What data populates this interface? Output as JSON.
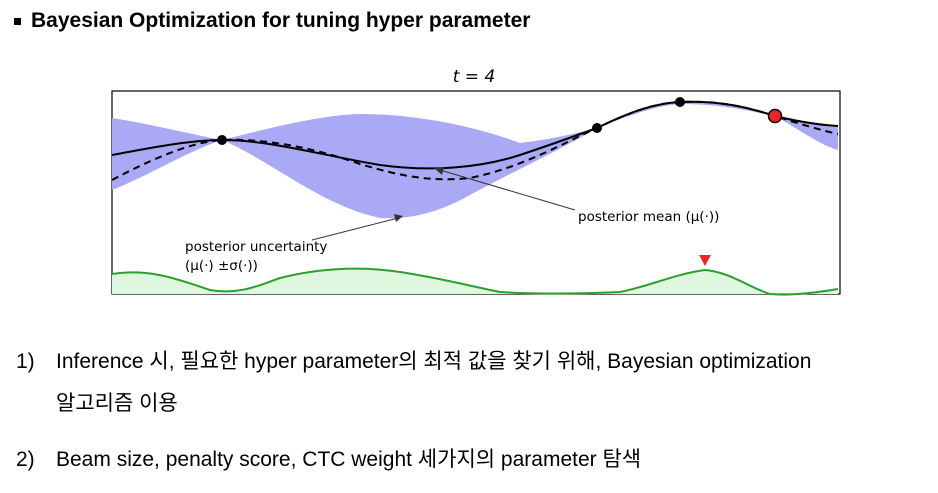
{
  "heading": {
    "title": "Bayesian Optimization for tuning hyper parameter"
  },
  "figure": {
    "title": "t = 4",
    "annotations": {
      "mean": "posterior mean (μ(·))",
      "uncertainty_line1": "posterior uncertainty",
      "uncertainty_line2": "(μ(·) ±σ(·))"
    },
    "colors": {
      "band": "#a9a9f5",
      "mean": "#000000",
      "acquisition": "#2ca02c",
      "acquisition_fill": "#dff7df",
      "next_point": "#e8262a"
    }
  },
  "list": [
    {
      "num": "1)",
      "line1": "Inference 시, 필요한 hyper parameter의 최적 값을 찾기 위해, Bayesian optimization",
      "line2": "알고리즘 이용"
    },
    {
      "num": "2)",
      "line1": "Beam size, penalty score, CTC weight 세가지의 parameter 탐색"
    }
  ]
}
